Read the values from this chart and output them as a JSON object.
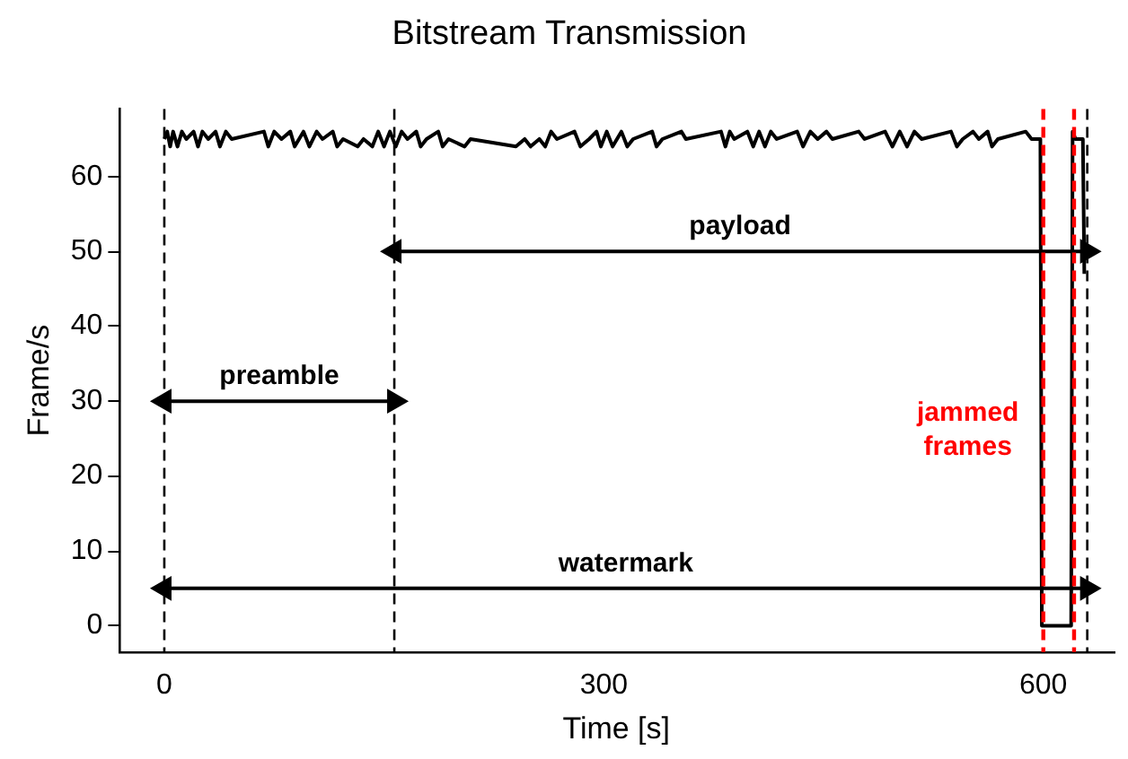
{
  "chart_data": {
    "type": "line",
    "title": "Bitstream Transmission",
    "xlabel": "Time [s]",
    "ylabel": "Frame/s",
    "xlim": [
      -31,
      648
    ],
    "ylim": [
      -3.5,
      69
    ],
    "xticks": [
      0,
      300,
      600
    ],
    "yticks": [
      0,
      10,
      20,
      30,
      40,
      50,
      60
    ],
    "grid": false,
    "legend": false,
    "series": [
      {
        "color": "#000000",
        "marker": "none",
        "x": [
          0,
          2,
          4,
          6,
          9,
          12,
          15,
          20,
          23,
          26,
          30,
          35,
          38,
          42,
          46,
          68,
          71,
          75,
          80,
          86,
          89,
          95,
          99,
          104,
          108,
          115,
          118,
          122,
          132,
          136,
          142,
          146,
          150,
          154,
          158,
          162,
          166,
          172,
          175,
          179,
          187,
          190,
          194,
          205,
          209,
          240,
          246,
          250,
          256,
          260,
          264,
          268,
          280,
          284,
          290,
          295,
          298,
          302,
          306,
          312,
          316,
          320,
          333,
          336,
          340,
          353,
          356,
          380,
          383,
          386,
          389,
          398,
          402,
          406,
          410,
          414,
          418,
          432,
          436,
          441,
          446,
          452,
          456,
          474,
          478,
          492,
          497,
          502,
          507,
          512,
          517,
          537,
          541,
          545,
          552,
          556,
          562,
          565,
          569,
          588,
          592,
          598,
          599,
          619,
          620,
          622,
          627,
          628
        ],
        "values": [
          65,
          66,
          64,
          66,
          64,
          66,
          65,
          66,
          64,
          66,
          65,
          66,
          64,
          66,
          65,
          66,
          64,
          66,
          65,
          66,
          64,
          66,
          64,
          66,
          65,
          66,
          64,
          65,
          64,
          65,
          64,
          66,
          64,
          66,
          64,
          66,
          65,
          66,
          64,
          65,
          66,
          64,
          65,
          64,
          65,
          64,
          65,
          64,
          65,
          64,
          66,
          65,
          66,
          64,
          65,
          66,
          64,
          66,
          64,
          66,
          64,
          65,
          66,
          64,
          65,
          66,
          65,
          66,
          64,
          66,
          65,
          66,
          64,
          66,
          64,
          66,
          65,
          66,
          64,
          66,
          65,
          66,
          65,
          66,
          65,
          66,
          64,
          66,
          64,
          66,
          65,
          66,
          64,
          65,
          66,
          65,
          66,
          64,
          65,
          66,
          65,
          65,
          0,
          0,
          66,
          65,
          65,
          47
        ]
      },
      {
        "type": "line",
        "color": "#000000",
        "marker": "triangle",
        "x": [
          0,
          157
        ],
        "values": [
          30,
          30
        ]
      },
      {
        "type": "line",
        "color": "#000000",
        "marker": "triangle",
        "x": [
          157,
          630
        ],
        "values": [
          50,
          50
        ]
      },
      {
        "type": "line",
        "color": "#000000",
        "marker": "triangle",
        "x": [
          0,
          630
        ],
        "values": [
          5,
          5
        ]
      }
    ],
    "ref_lines": [
      {
        "axis": "x",
        "value": 0,
        "color": "#000000",
        "line_style": "dashed"
      },
      {
        "axis": "x",
        "value": 157,
        "color": "#000000",
        "line_style": "dashed"
      },
      {
        "axis": "x",
        "value": 630,
        "color": "#000000",
        "line_style": "dashed"
      },
      {
        "axis": "x",
        "value": 600,
        "color": "#ff0000",
        "line_style": "dashed",
        "label": "jammed frames"
      },
      {
        "axis": "x",
        "value": 621,
        "color": "#ff0000",
        "line_style": "dashed"
      }
    ],
    "annotations": [
      {
        "text": "preamble",
        "x": 78.5,
        "y": 30
      },
      {
        "text": "payload",
        "x": 393,
        "y": 50
      },
      {
        "text": "watermark",
        "x": 315,
        "y": 5
      }
    ]
  }
}
